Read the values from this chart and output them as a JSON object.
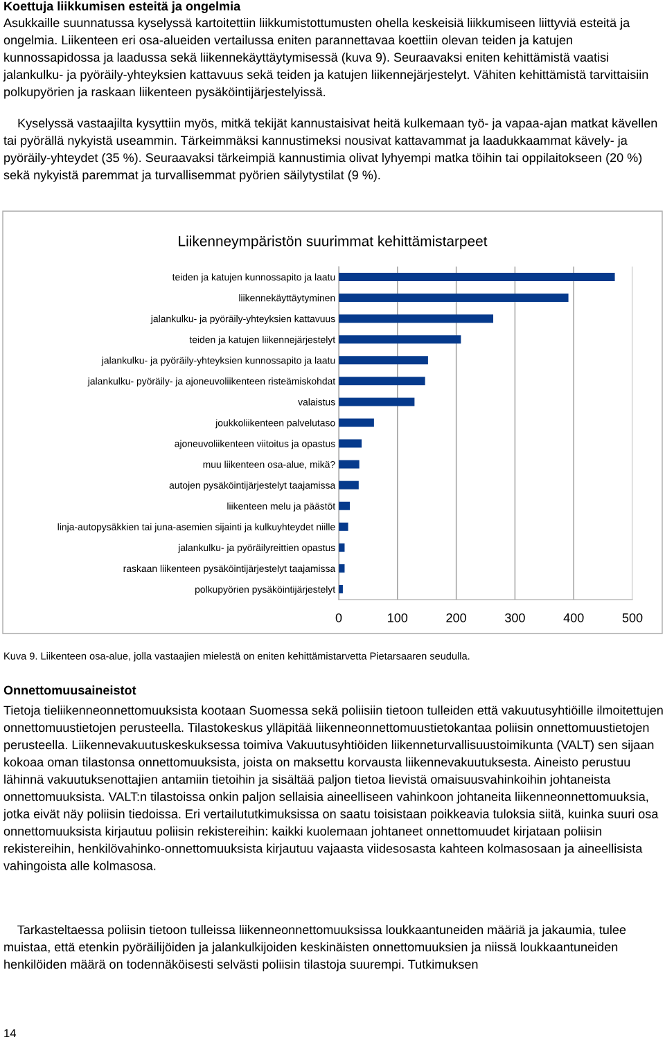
{
  "chart_data": {
    "type": "bar",
    "orientation": "horizontal",
    "title": "Liikenneympäristön suurimmat kehittämistarpeet",
    "categories": [
      "teiden ja katujen kunnossapito ja laatu",
      "liikennekäyttäytyminen",
      "jalankulku- ja pyöräily-yhteyksien kattavuus",
      "teiden ja katujen liikennejärjestelyt",
      "jalankulku- ja pyöräily-yhteyksien kunnossapito ja laatu",
      "jalankulku- pyöräily- ja ajoneuvoliikenteen risteämiskohdat",
      "valaistus",
      "joukkoliikenteen palvelutaso",
      "ajoneuvoliikenteen viitoitus ja opastus",
      "muu liikenteen osa-alue, mikä?",
      "autojen pysäköintijärjestelyt taajamissa",
      "liikenteen melu ja päästöt",
      "linja-autopysäkkien tai juna-asemien sijainti ja kulkuyhteydet niille",
      "jalankulku- ja pyöräilyreittien opastus",
      "raskaan liikenteen pysäköintijärjestelyt taajamissa",
      "polkupyörien pysäköintijärjestelyt"
    ],
    "values": [
      470,
      391,
      263,
      208,
      152,
      147,
      129,
      60,
      39,
      35,
      34,
      19,
      16,
      10,
      10,
      7
    ],
    "color": "#063a8c",
    "xlim": [
      0,
      500
    ],
    "xticks": [
      0,
      100,
      200,
      300,
      400,
      500
    ],
    "grid": "x",
    "annotations": [
      "Koettuja liikkumisen esteitä ja ongelmia",
      "Asukkaille suunnatussa kyselyssä kartoitettiin liikkumistottumusten ohella keskeisiä liikkumiseen liittyviä esteitä ja ongelmia. Liikenteen eri osa-alueiden vertailussa eniten parannettavaa koettiin olevan teiden ja katujen kunnossapidossa ja laadussa sekä liikennekäyttäytymisessä (kuva 9). Seuraavaksi eniten kehittämistä vaatisi jalankulku- ja pyöräily-yhteyksien kattavuus sekä teiden ja katujen liikennejärjestelyt. Vähiten kehittämistä tarvittaisiin polkupyörien ja raskaan liikenteen pysäköintijärjestelyissä.",
      "    Kyselyssä vastaajilta kysyttiin myös, mitkä tekijät kannustaisivat heitä kulkemaan työ- ja vapaa-ajan matkat kävellen tai pyörällä nykyistä useammin. Tärkeimmäksi kannustimeksi nousivat kattavammat ja laadukkaammat kävely- ja pyöräily-yhteydet (35 %). Seuraavaksi tärkeimpiä kannustimia olivat lyhyempi matka töihin tai oppilaitokseen (20 %) sekä nykyistä paremmat ja turvallisemmat pyörien säilytystilat (9 %).",
      "Kuva 9. Liikenteen osa-alue, jolla vastaajien mielestä on eniten kehittämistarvetta Pietarsaaren seudulla.",
      "Onnettomuusaineistot",
      "Tietoja tieliikenneonnettomuuksista kootaan Suomessa sekä poliisiin tietoon tulleiden että vakuutusyhtiöille ilmoitettujen onnettomuustietojen perusteella. Tilastokeskus ylläpitää liikenneonnettomuustietokantaa poliisin onnettomuustietojen perusteella. Liikennevakuutuskeskuksessa toimiva Vakuutusyhtiöiden liikenneturvallisuustoimikunta (VALT) sen sijaan kokoaa oman tilastonsa onnettomuuksista, joista on maksettu korvausta liikennevakuutuksesta. Aineisto perustuu lähinnä vakuutuksenottajien antamiin tietoihin ja sisältää paljon tietoa lievistä omaisuusvahinkoihin johtaneista onnettomuuksista. VALT:n tilastoissa onkin paljon sellaisia aineelliseen vahinkoon johtaneita liikenneonnettomuuksia, jotka eivät näy poliisin tiedoissa. Eri vertailututkimuksissa on saatu toisistaan poikkeavia tuloksia siitä, kuinka suuri osa onnettomuuksista kirjautuu poliisin rekistereihin: kaikki kuolemaan johtaneet onnettomuudet kirjataan poliisin rekistereihin, henkilövahinko-onnettomuuksista kirjautuu vajaasta viidesosasta kahteen kolmasosaan ja aineellisista vahingoista alle kolmasosa.",
      "    Tarkasteltaessa poliisin tietoon tulleissa liikenneonnettomuuksissa loukkaantuneiden määriä ja jakaumia, tulee muistaa, että etenkin pyöräilijöiden ja jalankulkijoiden keskinäisten onnettomuuksien ja niissä loukkaantuneiden henkilöiden määrä on todennäköisesti selvästi poliisin tilastoja suurempi. Tutkimuksen",
      "14"
    ]
  }
}
